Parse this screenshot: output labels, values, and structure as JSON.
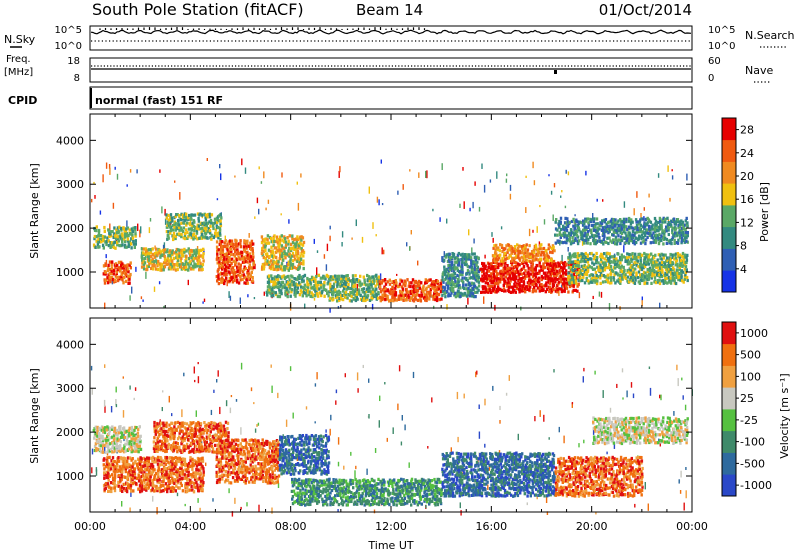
{
  "header": {
    "station": "South Pole Station (fitACF)",
    "beam": "Beam 14",
    "date": "01/Oct/2014"
  },
  "left_labels": {
    "nsky": "N.Sky",
    "freq_line1": "Freq.",
    "freq_line2": "[MHz]",
    "cpid": "CPID"
  },
  "right_labels": {
    "nsearch": "N.Search",
    "nave": "Nave"
  },
  "mode_text": "normal (fast) 151 RF",
  "chart_data": [
    {
      "type": "line",
      "panel": "noise",
      "series_left": "N.Sky",
      "series_right": "N.Search",
      "left_ticks": [
        "10^5",
        "10^0"
      ],
      "right_ticks": [
        "10^5",
        "10^0"
      ]
    },
    {
      "type": "line",
      "panel": "frequency",
      "left_ticks": [
        "18",
        "8"
      ],
      "right_ticks": [
        "60",
        "0"
      ],
      "freq_mhz": 12,
      "nave": 16
    },
    {
      "type": "heatmap",
      "panel": "power",
      "ylabel": "Slant Range [km]",
      "y_ticks": [
        1000,
        2000,
        3000,
        4000
      ],
      "ylim": [
        180,
        4600
      ],
      "x_ticks": [
        "00:00",
        "04:00",
        "08:00",
        "12:00",
        "16:00",
        "20:00",
        "00:00"
      ],
      "xlim_hours": [
        0,
        24
      ],
      "colorbar_label": "Power [dB]",
      "colorbar_ticks": [
        4,
        8,
        12,
        16,
        20,
        24,
        28
      ],
      "colorbar_range": [
        0,
        30
      ],
      "colors": [
        "#1633e6",
        "#2f5fb4",
        "#338a80",
        "#5aa866",
        "#f0c010",
        "#f08a20",
        "#f05a10",
        "#e60000"
      ],
      "regions": [
        {
          "t0": 0.1,
          "t1": 1.8,
          "r0": 1500,
          "r1": 2000,
          "level": 3
        },
        {
          "t0": 0.5,
          "t1": 1.6,
          "r0": 700,
          "r1": 1200,
          "level": 6
        },
        {
          "t0": 2.0,
          "t1": 4.5,
          "r0": 1000,
          "r1": 1500,
          "level": 4
        },
        {
          "t0": 3.0,
          "t1": 5.2,
          "r0": 1700,
          "r1": 2300,
          "level": 3
        },
        {
          "t0": 5.0,
          "t1": 6.5,
          "r0": 700,
          "r1": 1700,
          "level": 6
        },
        {
          "t0": 6.8,
          "t1": 8.5,
          "r0": 1000,
          "r1": 1800,
          "level": 4
        },
        {
          "t0": 7.0,
          "t1": 9.5,
          "r0": 400,
          "r1": 900,
          "level": 3
        },
        {
          "t0": 9.5,
          "t1": 11.5,
          "r0": 300,
          "r1": 900,
          "level": 3
        },
        {
          "t0": 11.5,
          "t1": 14.0,
          "r0": 300,
          "r1": 800,
          "level": 6
        },
        {
          "t0": 14.0,
          "t1": 15.5,
          "r0": 400,
          "r1": 1400,
          "level": 2
        },
        {
          "t0": 15.5,
          "t1": 19.5,
          "r0": 500,
          "r1": 1200,
          "level": 7
        },
        {
          "t0": 16.0,
          "t1": 18.5,
          "r0": 1200,
          "r1": 1600,
          "level": 5
        },
        {
          "t0": 19.0,
          "t1": 23.8,
          "r0": 700,
          "r1": 1400,
          "level": 3
        },
        {
          "t0": 18.5,
          "t1": 23.8,
          "r0": 1600,
          "r1": 2200,
          "level": 2
        }
      ]
    },
    {
      "type": "heatmap",
      "panel": "velocity",
      "ylabel": "Slant Range [km]",
      "y_ticks": [
        1000,
        2000,
        3000,
        4000
      ],
      "ylim": [
        180,
        4600
      ],
      "x_ticks": [
        "00:00",
        "04:00",
        "08:00",
        "12:00",
        "16:00",
        "20:00",
        "00:00"
      ],
      "xlim_hours": [
        0,
        24
      ],
      "xlabel": "Time UT",
      "colorbar_label": "Velocity [m s⁻¹]",
      "colorbar_ticks": [
        "1000",
        "500",
        "100",
        "25",
        "-25",
        "-100",
        "-500",
        "-1000"
      ],
      "colors": [
        "#2a48c8",
        "#2e6a9e",
        "#3f8a6a",
        "#55c040",
        "#c8c8c0",
        "#f0a040",
        "#f07010",
        "#e01010"
      ],
      "regions": [
        {
          "t0": 0.1,
          "t1": 2.0,
          "r0": 1500,
          "r1": 2100,
          "level": 4
        },
        {
          "t0": 0.5,
          "t1": 4.5,
          "r0": 600,
          "r1": 1400,
          "level": 6
        },
        {
          "t0": 2.5,
          "t1": 5.5,
          "r0": 1500,
          "r1": 2200,
          "level": 6
        },
        {
          "t0": 5.0,
          "t1": 7.5,
          "r0": 800,
          "r1": 1800,
          "level": 6
        },
        {
          "t0": 7.5,
          "t1": 9.5,
          "r0": 1000,
          "r1": 1900,
          "level": 1
        },
        {
          "t0": 8.0,
          "t1": 14.0,
          "r0": 300,
          "r1": 900,
          "level": 2
        },
        {
          "t0": 14.0,
          "t1": 18.5,
          "r0": 500,
          "r1": 1500,
          "level": 1
        },
        {
          "t0": 18.5,
          "t1": 22.0,
          "r0": 500,
          "r1": 1400,
          "level": 6
        },
        {
          "t0": 20.0,
          "t1": 23.8,
          "r0": 1700,
          "r1": 2300,
          "level": 4
        }
      ]
    }
  ]
}
